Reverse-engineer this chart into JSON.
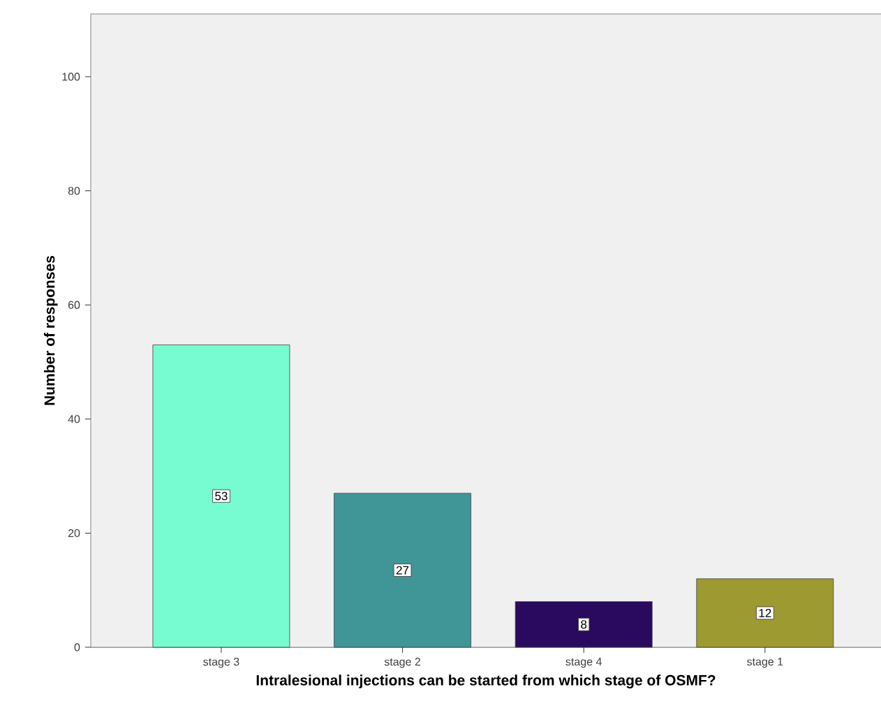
{
  "chart_data": {
    "type": "bar",
    "xlabel": "Intralesional injections can be started from which stage of OSMF?",
    "ylabel": "Number of responses",
    "categories": [
      "stage 3",
      "stage 2",
      "stage 4",
      "stage 1"
    ],
    "values": [
      53,
      27,
      8,
      12
    ],
    "colors": [
      "#77fbd0",
      "#409597",
      "#2a0a5e",
      "#9e9a32"
    ],
    "ylim": [
      0,
      111
    ],
    "yticks": [
      0,
      20,
      40,
      60,
      80,
      100
    ],
    "data_labels": true,
    "grid": false
  }
}
